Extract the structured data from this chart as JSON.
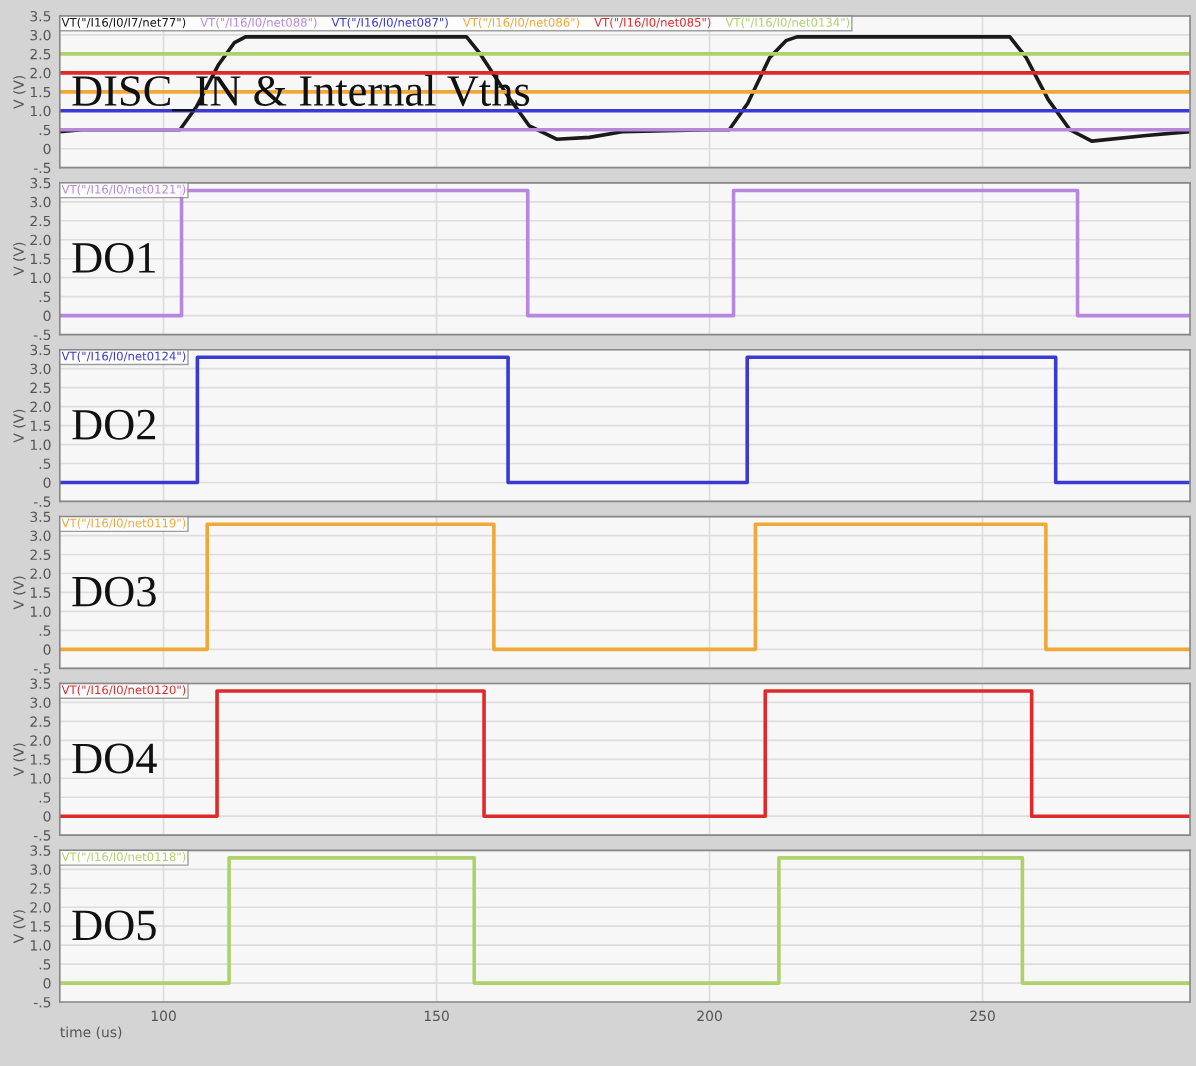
{
  "chart_data": [
    {
      "type": "line",
      "annotations": [
        "DISC_IN & Internal Vths"
      ],
      "ylabel": "V (V)",
      "xlim": [
        81,
        288
      ],
      "xticks": [
        100,
        150,
        200,
        250
      ],
      "ylim": [
        -0.5,
        3.5
      ],
      "yticks": [
        {
          "value": -0.5,
          "label": "-.5"
        },
        0,
        {
          "value": 0.5,
          "label": ".5"
        },
        {
          "value": 1,
          "label": "1.0"
        },
        {
          "value": 1.5,
          "label": "1.5"
        },
        {
          "value": 2,
          "label": "2.0"
        },
        {
          "value": 2.5,
          "label": "2.5"
        },
        {
          "value": 3,
          "label": "3.0"
        },
        {
          "value": 3.5,
          "label": "3.5"
        }
      ],
      "grid": true,
      "legend": "top left",
      "tick_labels": "y",
      "series": [
        {
          "name": "VT(\"/I16/I0/I7/net77\")",
          "color": "#1a1a1a",
          "x": [
            81,
            85,
            90,
            103,
            106,
            110,
            113,
            115,
            135,
            155.5,
            158,
            163,
            167,
            172,
            178,
            184,
            200,
            203.6,
            207,
            211,
            214,
            216,
            240,
            255,
            258,
            262,
            266,
            270,
            280,
            288
          ],
          "values": [
            0.45,
            0.5,
            0.5,
            0.5,
            1.1,
            2.2,
            2.8,
            2.95,
            2.95,
            2.95,
            2.5,
            1.4,
            0.6,
            0.25,
            0.3,
            0.45,
            0.5,
            0.5,
            1.2,
            2.4,
            2.85,
            2.95,
            2.95,
            2.95,
            2.4,
            1.3,
            0.5,
            0.2,
            0.35,
            0.45
          ]
        },
        {
          "name": "VT(\"/I16/I0/net088\")",
          "color": "#b787e0",
          "x": [
            81,
            288
          ],
          "values": [
            0.5,
            0.5
          ]
        },
        {
          "name": "VT(\"/I16/I0/net087\")",
          "color": "#3a3ad0",
          "x": [
            81,
            288
          ],
          "values": [
            1.0,
            1.0
          ]
        },
        {
          "name": "VT(\"/I16/I0/net086\")",
          "color": "#f0a838",
          "x": [
            81,
            288
          ],
          "values": [
            1.5,
            1.5
          ]
        },
        {
          "name": "VT(\"/I16/I0/net085\")",
          "color": "#e02a2a",
          "x": [
            81,
            288
          ],
          "values": [
            2.0,
            2.0
          ]
        },
        {
          "name": "VT(\"/I16/I0/net0134\")",
          "color": "#aed26a",
          "x": [
            81,
            288
          ],
          "values": [
            2.5,
            2.5
          ]
        }
      ]
    },
    {
      "type": "line",
      "annotations": [
        "DO1"
      ],
      "ylabel": "V (V)",
      "xlim": [
        81,
        288
      ],
      "xticks": [
        100,
        150,
        200,
        250
      ],
      "ylim": [
        -0.5,
        3.5
      ],
      "yticks": [
        {
          "value": -0.5,
          "label": "-.5"
        },
        0,
        {
          "value": 0.5,
          "label": ".5"
        },
        {
          "value": 1,
          "label": "1.0"
        },
        {
          "value": 1.5,
          "label": "1.5"
        },
        {
          "value": 2,
          "label": "2.0"
        },
        {
          "value": 2.5,
          "label": "2.5"
        },
        {
          "value": 3,
          "label": "3.0"
        },
        {
          "value": 3.5,
          "label": "3.5"
        }
      ],
      "grid": true,
      "legend": "top left",
      "tick_labels": "y",
      "series": [
        {
          "name": "VT(\"/I16/I0/net0121\")",
          "color": "#b787e0",
          "x": [
            81,
            103.3,
            103.3,
            166.7,
            166.7,
            204.4,
            204.4,
            267.4,
            267.4,
            288
          ],
          "values": [
            0,
            0,
            3.3,
            3.3,
            0,
            0,
            3.3,
            3.3,
            0,
            0
          ]
        }
      ]
    },
    {
      "type": "line",
      "annotations": [
        "DO2"
      ],
      "ylabel": "V (V)",
      "xlim": [
        81,
        288
      ],
      "xticks": [
        100,
        150,
        200,
        250
      ],
      "ylim": [
        -0.5,
        3.5
      ],
      "yticks": [
        {
          "value": -0.5,
          "label": "-.5"
        },
        0,
        {
          "value": 0.5,
          "label": ".5"
        },
        {
          "value": 1,
          "label": "1.0"
        },
        {
          "value": 1.5,
          "label": "1.5"
        },
        {
          "value": 2,
          "label": "2.0"
        },
        {
          "value": 2.5,
          "label": "2.5"
        },
        {
          "value": 3,
          "label": "3.0"
        },
        {
          "value": 3.5,
          "label": "3.5"
        }
      ],
      "grid": true,
      "legend": "top left",
      "tick_labels": "y",
      "series": [
        {
          "name": "VT(\"/I16/I0/net0124\")",
          "color": "#3a3ad0",
          "x": [
            81,
            106.2,
            106.2,
            163.1,
            163.1,
            206.9,
            206.9,
            263.4,
            263.4,
            288
          ],
          "values": [
            0,
            0,
            3.3,
            3.3,
            0,
            0,
            3.3,
            3.3,
            0,
            0
          ]
        }
      ]
    },
    {
      "type": "line",
      "annotations": [
        "DO3"
      ],
      "ylabel": "V (V)",
      "xlim": [
        81,
        288
      ],
      "xticks": [
        100,
        150,
        200,
        250
      ],
      "ylim": [
        -0.5,
        3.5
      ],
      "yticks": [
        {
          "value": -0.5,
          "label": "-.5"
        },
        0,
        {
          "value": 0.5,
          "label": ".5"
        },
        {
          "value": 1,
          "label": "1.0"
        },
        {
          "value": 1.5,
          "label": "1.5"
        },
        {
          "value": 2,
          "label": "2.0"
        },
        {
          "value": 2.5,
          "label": "2.5"
        },
        {
          "value": 3,
          "label": "3.0"
        },
        {
          "value": 3.5,
          "label": "3.5"
        }
      ],
      "grid": true,
      "legend": "top left",
      "tick_labels": "y",
      "series": [
        {
          "name": "VT(\"/I16/I0/net0119\")",
          "color": "#f0a838",
          "x": [
            81,
            108,
            108,
            160.5,
            160.5,
            208.4,
            208.4,
            261.6,
            261.6,
            288
          ],
          "values": [
            0,
            0,
            3.3,
            3.3,
            0,
            0,
            3.3,
            3.3,
            0,
            0
          ]
        }
      ]
    },
    {
      "type": "line",
      "annotations": [
        "DO4"
      ],
      "ylabel": "V (V)",
      "xlim": [
        81,
        288
      ],
      "xticks": [
        100,
        150,
        200,
        250
      ],
      "ylim": [
        -0.5,
        3.5
      ],
      "yticks": [
        {
          "value": -0.5,
          "label": "-.5"
        },
        0,
        {
          "value": 0.5,
          "label": ".5"
        },
        {
          "value": 1,
          "label": "1.0"
        },
        {
          "value": 1.5,
          "label": "1.5"
        },
        {
          "value": 2,
          "label": "2.0"
        },
        {
          "value": 2.5,
          "label": "2.5"
        },
        {
          "value": 3,
          "label": "3.0"
        },
        {
          "value": 3.5,
          "label": "3.5"
        }
      ],
      "grid": true,
      "legend": "top left",
      "tick_labels": "y",
      "series": [
        {
          "name": "VT(\"/I16/I0/net0120\")",
          "color": "#e02a2a",
          "x": [
            81,
            109.8,
            109.8,
            158.7,
            158.7,
            210.2,
            210.2,
            259,
            259,
            288
          ],
          "values": [
            0,
            0,
            3.3,
            3.3,
            0,
            0,
            3.3,
            3.3,
            0,
            0
          ]
        }
      ]
    },
    {
      "type": "line",
      "annotations": [
        "DO5"
      ],
      "ylabel": "V (V)",
      "xlabel": "time (us)",
      "xlim": [
        81,
        288
      ],
      "xticks": [
        100,
        150,
        200,
        250
      ],
      "ylim": [
        -0.5,
        3.5
      ],
      "yticks": [
        {
          "value": -0.5,
          "label": "-.5"
        },
        0,
        {
          "value": 0.5,
          "label": ".5"
        },
        {
          "value": 1,
          "label": "1.0"
        },
        {
          "value": 1.5,
          "label": "1.5"
        },
        {
          "value": 2,
          "label": "2.0"
        },
        {
          "value": 2.5,
          "label": "2.5"
        },
        {
          "value": 3,
          "label": "3.0"
        },
        {
          "value": 3.5,
          "label": "3.5"
        }
      ],
      "grid": true,
      "legend": "top left",
      "series": [
        {
          "name": "VT(\"/I16/I0/net0118\")",
          "color": "#aed26a",
          "x": [
            81,
            112,
            112,
            156.9,
            156.9,
            212.7,
            212.7,
            257.3,
            257.3,
            288
          ],
          "values": [
            0,
            0,
            3.3,
            3.3,
            0,
            0,
            3.3,
            3.3,
            0,
            0
          ]
        }
      ]
    }
  ]
}
